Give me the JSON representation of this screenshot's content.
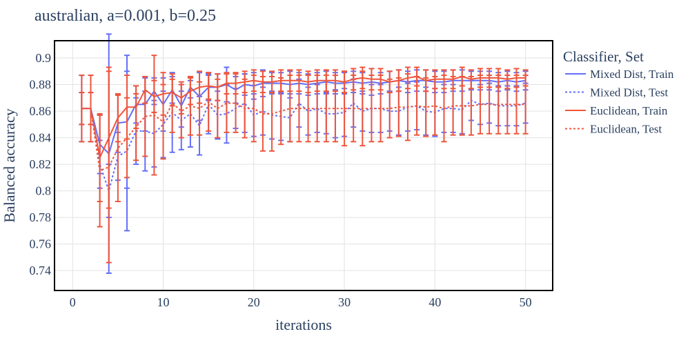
{
  "chart_data": {
    "type": "line",
    "title": "australian, a=0.001, b=0.25",
    "xlabel": "iterations",
    "ylabel": "Balanced accuracy",
    "xlim": [
      -2,
      53
    ],
    "ylim": [
      0.725,
      0.913
    ],
    "x_ticks": [
      0,
      10,
      20,
      30,
      40,
      50
    ],
    "x_tick_labels": [
      "0",
      "10",
      "20",
      "30",
      "40",
      "50"
    ],
    "y_ticks": [
      0.74,
      0.76,
      0.78,
      0.8,
      0.82,
      0.84,
      0.86,
      0.88,
      0.9
    ],
    "y_tick_labels": [
      "0.74",
      "0.76",
      "0.78",
      "0.8",
      "0.82",
      "0.84",
      "0.86",
      "0.88",
      "0.9"
    ],
    "grid": true,
    "legend_title": "Classifier, Set",
    "legend_position": "right",
    "x": [
      1,
      2,
      3,
      4,
      5,
      6,
      7,
      8,
      9,
      10,
      11,
      12,
      13,
      14,
      15,
      16,
      17,
      18,
      19,
      20,
      21,
      22,
      23,
      24,
      25,
      26,
      27,
      28,
      29,
      30,
      31,
      32,
      33,
      34,
      35,
      36,
      37,
      38,
      39,
      40,
      41,
      42,
      43,
      44,
      45,
      46,
      47,
      48,
      49,
      50
    ],
    "series": [
      {
        "name": "Mixed Dist, Train",
        "color": "#636efa",
        "dash": "solid",
        "values": [
          0.862,
          0.862,
          0.835,
          0.828,
          0.851,
          0.852,
          0.865,
          0.865,
          0.875,
          0.865,
          0.876,
          0.864,
          0.878,
          0.871,
          0.878,
          0.878,
          0.88,
          0.876,
          0.88,
          0.879,
          0.881,
          0.881,
          0.881,
          0.88,
          0.881,
          0.88,
          0.881,
          0.882,
          0.881,
          0.881,
          0.882,
          0.881,
          0.882,
          0.881,
          0.882,
          0.883,
          0.882,
          0.883,
          0.883,
          0.882,
          0.882,
          0.883,
          0.883,
          0.883,
          0.883,
          0.883,
          0.882,
          0.883,
          0.882,
          0.883
        ],
        "error": [
          0.012,
          0.012,
          0.022,
          0.09,
          0.022,
          0.05,
          0.014,
          0.02,
          0.01,
          0.02,
          0.01,
          0.016,
          0.008,
          0.018,
          0.01,
          0.01,
          0.013,
          0.01,
          0.008,
          0.01,
          0.01,
          0.008,
          0.008,
          0.01,
          0.008,
          0.008,
          0.008,
          0.008,
          0.008,
          0.008,
          0.008,
          0.008,
          0.01,
          0.008,
          0.008,
          0.008,
          0.008,
          0.008,
          0.008,
          0.008,
          0.008,
          0.008,
          0.008,
          0.007,
          0.007,
          0.007,
          0.007,
          0.007,
          0.007,
          0.007
        ]
      },
      {
        "name": "Mixed Dist, Test",
        "color": "#636efa",
        "dash": "dot",
        "values": [
          0.862,
          0.862,
          0.82,
          0.8,
          0.826,
          0.83,
          0.845,
          0.845,
          0.843,
          0.85,
          0.859,
          0.853,
          0.858,
          0.849,
          0.865,
          0.857,
          0.858,
          0.862,
          0.866,
          0.857,
          0.86,
          0.857,
          0.856,
          0.855,
          0.866,
          0.86,
          0.862,
          0.858,
          0.858,
          0.859,
          0.866,
          0.86,
          0.862,
          0.862,
          0.86,
          0.86,
          0.863,
          0.864,
          0.86,
          0.859,
          0.862,
          0.862,
          0.861,
          0.868,
          0.865,
          0.866,
          0.864,
          0.864,
          0.864,
          0.866
        ],
        "error": [
          0.025,
          0.025,
          0.018,
          0.02,
          0.018,
          0.06,
          0.025,
          0.03,
          0.025,
          0.025,
          0.03,
          0.022,
          0.025,
          0.022,
          0.022,
          0.018,
          0.022,
          0.015,
          0.022,
          0.016,
          0.018,
          0.018,
          0.018,
          0.018,
          0.018,
          0.018,
          0.018,
          0.015,
          0.018,
          0.018,
          0.018,
          0.015,
          0.018,
          0.018,
          0.015,
          0.018,
          0.018,
          0.018,
          0.018,
          0.018,
          0.018,
          0.018,
          0.018,
          0.015,
          0.015,
          0.015,
          0.015,
          0.015,
          0.015,
          0.015
        ]
      },
      {
        "name": "Euclidean, Train",
        "color": "#ef553b",
        "dash": "solid",
        "values": [
          0.862,
          0.862,
          0.825,
          0.84,
          0.855,
          0.863,
          0.863,
          0.876,
          0.871,
          0.873,
          0.874,
          0.87,
          0.875,
          0.878,
          0.879,
          0.878,
          0.881,
          0.881,
          0.882,
          0.883,
          0.882,
          0.882,
          0.883,
          0.883,
          0.883,
          0.882,
          0.883,
          0.883,
          0.883,
          0.882,
          0.884,
          0.885,
          0.884,
          0.884,
          0.882,
          0.883,
          0.885,
          0.886,
          0.883,
          0.884,
          0.884,
          0.884,
          0.886,
          0.884,
          0.885,
          0.885,
          0.885,
          0.884,
          0.885,
          0.885
        ],
        "error": [
          0.012,
          0.012,
          0.033,
          0.053,
          0.018,
          0.024,
          0.016,
          0.01,
          0.012,
          0.016,
          0.01,
          0.012,
          0.01,
          0.012,
          0.01,
          0.01,
          0.008,
          0.008,
          0.008,
          0.008,
          0.008,
          0.008,
          0.008,
          0.008,
          0.008,
          0.008,
          0.008,
          0.008,
          0.008,
          0.008,
          0.008,
          0.008,
          0.008,
          0.008,
          0.008,
          0.008,
          0.008,
          0.007,
          0.008,
          0.007,
          0.007,
          0.007,
          0.007,
          0.007,
          0.007,
          0.007,
          0.007,
          0.007,
          0.007,
          0.006
        ]
      },
      {
        "name": "Euclidean, Test",
        "color": "#ef553b",
        "dash": "dot",
        "values": [
          0.862,
          0.862,
          0.815,
          0.818,
          0.832,
          0.84,
          0.848,
          0.856,
          0.857,
          0.852,
          0.866,
          0.86,
          0.864,
          0.862,
          0.867,
          0.862,
          0.866,
          0.866,
          0.862,
          0.862,
          0.858,
          0.858,
          0.86,
          0.862,
          0.862,
          0.862,
          0.862,
          0.862,
          0.862,
          0.862,
          0.862,
          0.862,
          0.862,
          0.862,
          0.862,
          0.863,
          0.863,
          0.864,
          0.863,
          0.864,
          0.862,
          0.864,
          0.864,
          0.864,
          0.865,
          0.865,
          0.865,
          0.865,
          0.865,
          0.865
        ],
        "error": [
          0.025,
          0.025,
          0.042,
          0.072,
          0.04,
          0.03,
          0.025,
          0.03,
          0.045,
          0.028,
          0.022,
          0.02,
          0.022,
          0.02,
          0.022,
          0.022,
          0.022,
          0.022,
          0.022,
          0.025,
          0.028,
          0.028,
          0.025,
          0.025,
          0.025,
          0.025,
          0.025,
          0.025,
          0.025,
          0.028,
          0.025,
          0.028,
          0.025,
          0.025,
          0.022,
          0.022,
          0.025,
          0.022,
          0.022,
          0.022,
          0.025,
          0.022,
          0.022,
          0.022,
          0.022,
          0.022,
          0.022,
          0.022,
          0.022,
          0.022
        ]
      }
    ]
  }
}
